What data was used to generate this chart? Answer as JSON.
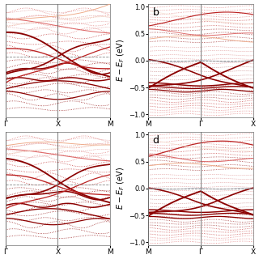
{
  "panel_a": {
    "label": "",
    "k_labels": [
      "Γ",
      "X",
      "M"
    ],
    "has_ylabel": false,
    "ylim": [
      -1.05,
      0.35
    ],
    "fermi": -0.3
  },
  "panel_b": {
    "label": "b",
    "k_labels": [
      "M",
      "Γ",
      "X"
    ],
    "has_ylabel": true,
    "ylim": [
      -1.05,
      1.05
    ],
    "fermi": 0.0
  },
  "panel_c": {
    "label": "",
    "k_labels": [
      "Γ",
      "X",
      "M"
    ],
    "has_ylabel": false,
    "ylim": [
      -1.05,
      0.35
    ],
    "fermi": -0.3
  },
  "panel_d": {
    "label": "d",
    "k_labels": [
      "M",
      "Γ",
      "X"
    ],
    "has_ylabel": true,
    "ylim": [
      -1.05,
      1.05
    ],
    "fermi": 0.0
  },
  "colors": {
    "darkest": "#5A0000",
    "dark": "#8B0000",
    "medium": "#BB2222",
    "light": "#DD6666",
    "lighter": "#EE9999",
    "lightest": "#F5CCBB"
  }
}
